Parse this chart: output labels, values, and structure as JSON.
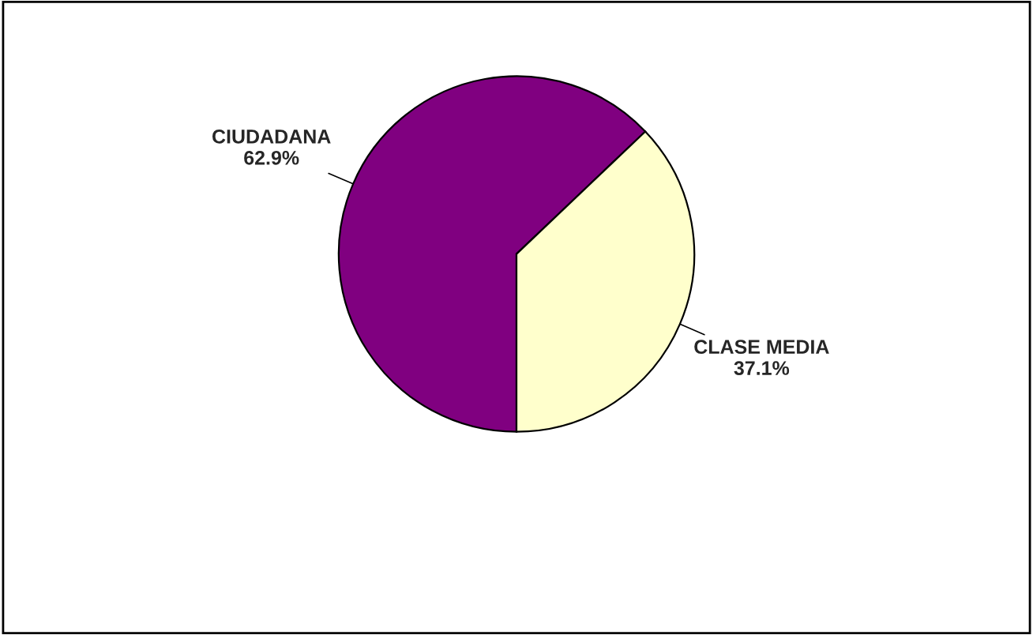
{
  "chart_data": {
    "type": "pie",
    "categories": [
      "CIUDADANA",
      "CLASE MEDIA"
    ],
    "values": [
      62.9,
      37.1
    ],
    "colors": [
      "#800080",
      "#ffffcc"
    ],
    "value_labels": [
      "62.9%",
      "37.1%"
    ],
    "legend": false
  }
}
